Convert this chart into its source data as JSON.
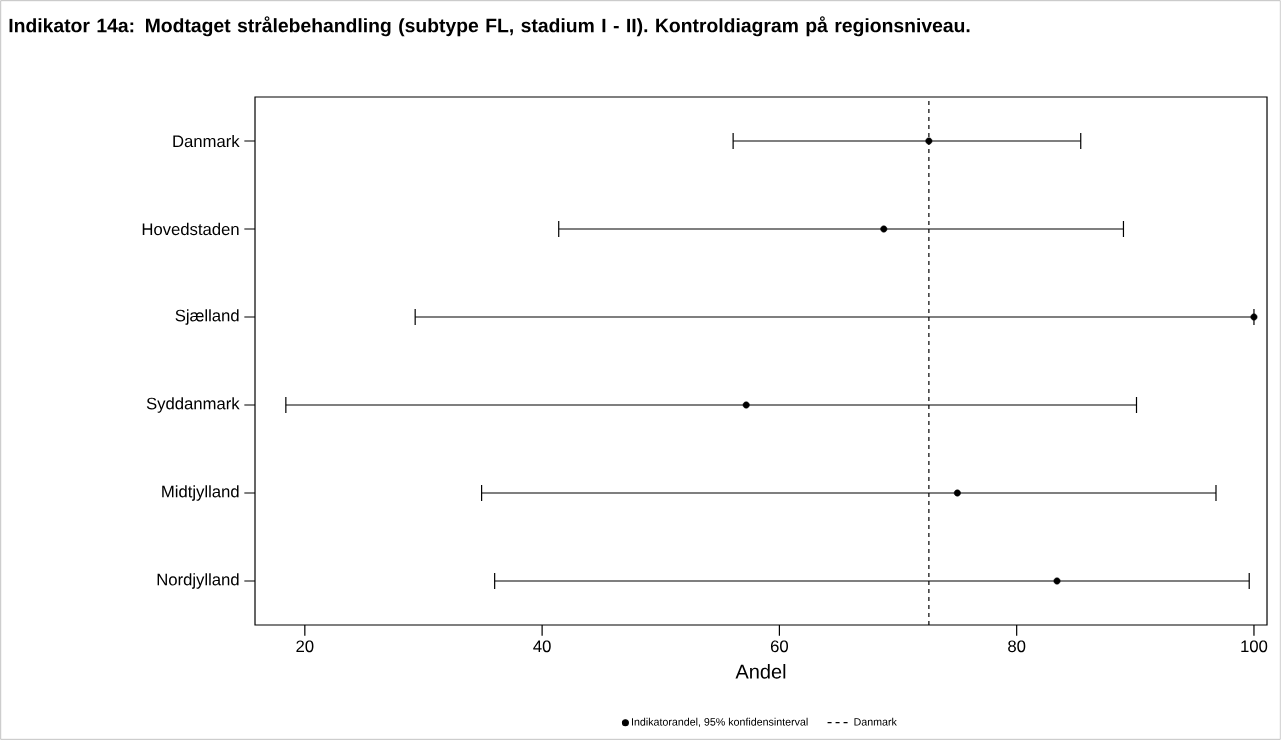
{
  "chart_data": {
    "type": "scatter",
    "orientation": "horizontal",
    "title": "Indikator 14a: Modtaget strålebehandling (subtype FL, stadium I - II). Kontroldiagram på regionsniveau.",
    "xlabel": "Andel",
    "categories": [
      "Danmark",
      "Hovedstaden",
      "Sjælland",
      "Syddanmark",
      "Midtjylland",
      "Nordjylland"
    ],
    "series": [
      {
        "name": "Indikatorandel, 95% konfidensinterval",
        "color": "#000000",
        "values": [
          72.6,
          68.8,
          100.0,
          57.2,
          75.0,
          83.4
        ],
        "errors": [
          [
            56.1,
            85.4
          ],
          [
            41.4,
            89.0
          ],
          [
            29.3,
            100.0
          ],
          [
            18.4,
            90.1
          ],
          [
            34.9,
            96.8
          ],
          [
            36.0,
            99.6
          ]
        ]
      }
    ],
    "xlim": [
      15.8,
      101.1
    ],
    "xticks": [
      20,
      40,
      60,
      80,
      100
    ],
    "ref_lines": [
      {
        "axis": "x",
        "value": 72.6,
        "label": "Danmark",
        "line_style": "dashed",
        "color": "#000000"
      }
    ],
    "marker": "circle",
    "legend": "bottom"
  }
}
